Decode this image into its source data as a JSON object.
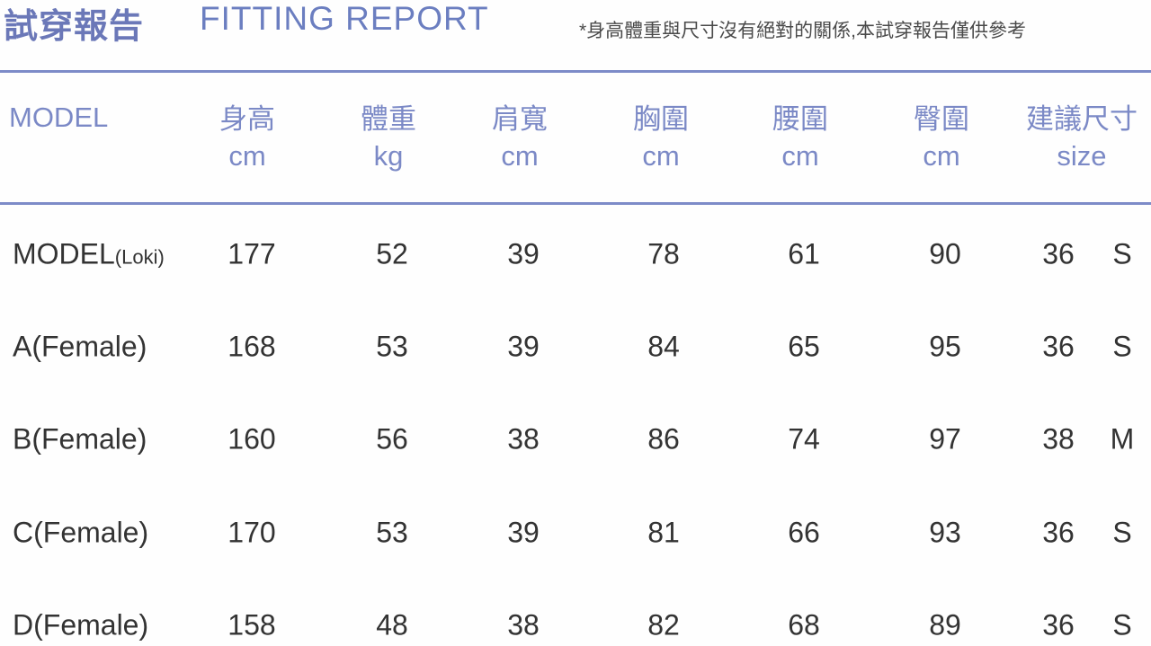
{
  "header": {
    "title_zh": "試穿報告",
    "title_en": "FITTING REPORT",
    "note": "*身高體重與尺寸沒有絕對的關係,本試穿報告僅供參考"
  },
  "colors": {
    "accent": "#7b89c6",
    "text": "#333333"
  },
  "table": {
    "columns": [
      {
        "label": "MODEL",
        "unit": ""
      },
      {
        "label": "身高",
        "unit": "cm"
      },
      {
        "label": "體重",
        "unit": "kg"
      },
      {
        "label": "肩寬",
        "unit": "cm"
      },
      {
        "label": "胸圍",
        "unit": "cm"
      },
      {
        "label": "腰圍",
        "unit": "cm"
      },
      {
        "label": "臀圍",
        "unit": "cm"
      },
      {
        "label": "建議尺寸",
        "unit": "size"
      }
    ],
    "rows": [
      {
        "model": "MODEL",
        "model_note": "(Loki)",
        "height": "177",
        "weight": "52",
        "shoulder": "39",
        "chest": "78",
        "waist": "61",
        "hip": "90",
        "size_num": "36",
        "size_letter": "S"
      },
      {
        "model": "A(Female)",
        "model_note": "",
        "height": "168",
        "weight": "53",
        "shoulder": "39",
        "chest": "84",
        "waist": "65",
        "hip": "95",
        "size_num": "36",
        "size_letter": "S"
      },
      {
        "model": "B(Female)",
        "model_note": "",
        "height": "160",
        "weight": "56",
        "shoulder": "38",
        "chest": "86",
        "waist": "74",
        "hip": "97",
        "size_num": "38",
        "size_letter": "M"
      },
      {
        "model": "C(Female)",
        "model_note": "",
        "height": "170",
        "weight": "53",
        "shoulder": "39",
        "chest": "81",
        "waist": "66",
        "hip": "93",
        "size_num": "36",
        "size_letter": "S"
      },
      {
        "model": "D(Female)",
        "model_note": "",
        "height": "158",
        "weight": "48",
        "shoulder": "38",
        "chest": "82",
        "waist": "68",
        "hip": "89",
        "size_num": "36",
        "size_letter": "S"
      }
    ]
  }
}
